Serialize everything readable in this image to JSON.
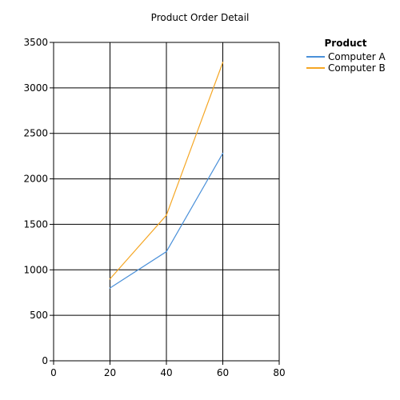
{
  "chart_data": {
    "type": "line",
    "title": "Product Order Detail",
    "xlabel": "",
    "ylabel": "",
    "xlim": [
      0,
      80
    ],
    "ylim": [
      0,
      3500
    ],
    "xticks": [
      0,
      20,
      40,
      60,
      80
    ],
    "yticks": [
      0,
      500,
      1000,
      1500,
      2000,
      2500,
      3000,
      3500
    ],
    "grid": true,
    "legend": {
      "title": "Product",
      "placement": "top-right, outside plot"
    },
    "x": [
      20,
      40,
      60
    ],
    "series": [
      {
        "name": "Computer A",
        "color": "#4A90D9",
        "values": [
          800,
          1200,
          2280
        ]
      },
      {
        "name": "Computer B",
        "color": "#F5A623",
        "values": [
          900,
          1600,
          3280
        ]
      }
    ]
  }
}
